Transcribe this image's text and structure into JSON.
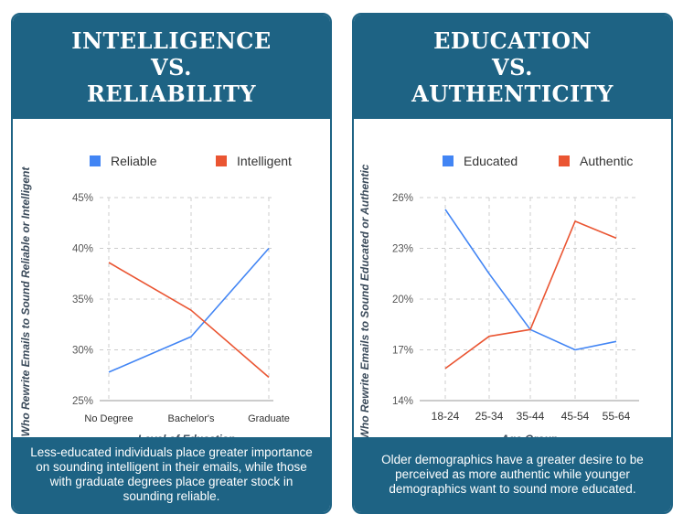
{
  "panels": [
    {
      "title_lines": [
        "INTELLIGENCE",
        "VS.",
        "RELIABILITY"
      ],
      "caption": "Less-educated individuals place greater importance on sounding intelligent in their emails, while those with graduate degrees place greater stock in sounding reliable.",
      "colors": {
        "header": "#1e6384"
      }
    },
    {
      "title_lines": [
        "EDUCATION",
        "VS.",
        "AUTHENTICITY"
      ],
      "caption": "Older demographics have a greater desire to be perceived as more authentic while younger demographics want to sound more educated.",
      "colors": {
        "header": "#1e6384"
      }
    }
  ],
  "chart_data": [
    {
      "type": "line",
      "title": "INTELLIGENCE VS. RELIABILITY",
      "categories": [
        "No Degree",
        "Bachelor's",
        "Graduate"
      ],
      "series": [
        {
          "name": "Reliable",
          "values": [
            27.8,
            31.3,
            40.0
          ],
          "color": "#4285f4"
        },
        {
          "name": "Intelligent",
          "values": [
            38.6,
            33.9,
            27.3
          ],
          "color": "#ea5532"
        }
      ],
      "xlabel": "Level of Education",
      "ylabel": "% Who Rewrite Emails to Sound Reliable or Intelligent",
      "ylim": [
        25,
        45
      ],
      "yticks": [
        25,
        30,
        35,
        40,
        45
      ],
      "ytick_labels": [
        "25%",
        "30%",
        "35%",
        "40%",
        "45%"
      ],
      "legend": "top"
    },
    {
      "type": "line",
      "title": "EDUCATION VS. AUTHENTICITY",
      "categories": [
        "18-24",
        "25-34",
        "35-44",
        "45-54",
        "55-64"
      ],
      "series": [
        {
          "name": "Educated",
          "values": [
            25.3,
            21.5,
            18.2,
            17.0,
            17.5
          ],
          "color": "#4285f4"
        },
        {
          "name": "Authentic",
          "values": [
            15.9,
            17.8,
            18.2,
            24.6,
            23.6
          ],
          "color": "#ea5532"
        }
      ],
      "xlabel": "Age Group",
      "ylabel": "% Who Rewrite Emails to Sound Educated or Authentic",
      "ylim": [
        14,
        26
      ],
      "yticks": [
        14,
        17,
        20,
        23,
        26
      ],
      "ytick_labels": [
        "14%",
        "17%",
        "20%",
        "23%",
        "26%"
      ],
      "legend": "top"
    }
  ]
}
